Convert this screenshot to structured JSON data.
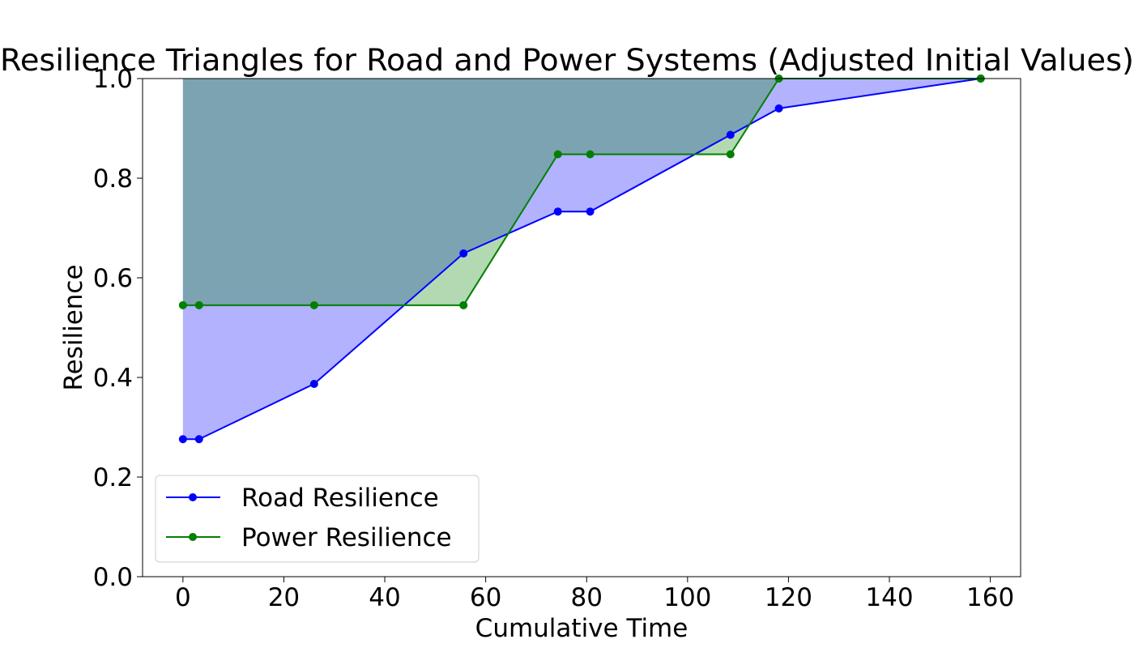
{
  "chart_data": {
    "type": "line",
    "title": "Resilience Triangles for Road and Power Systems (Adjusted Initial Values)",
    "xlabel": "Cumulative Time",
    "ylabel": "Resilience",
    "xlim": [
      -8,
      166
    ],
    "ylim": [
      0,
      1
    ],
    "xticks": [
      0,
      20,
      40,
      60,
      80,
      100,
      120,
      140,
      160
    ],
    "yticks": [
      0.0,
      0.2,
      0.4,
      0.6,
      0.8,
      1.0
    ],
    "xtick_labels": [
      "0",
      "20",
      "40",
      "60",
      "80",
      "100",
      "120",
      "140",
      "160"
    ],
    "ytick_labels": [
      "0.0",
      "0.2",
      "0.4",
      "0.6",
      "0.8",
      "1.0"
    ],
    "grid": false,
    "legend_position": "lower-left",
    "shaded_to": 1.0,
    "series": [
      {
        "name": "Road Resilience",
        "color": "#0000ff",
        "fill_color": "#0000ff",
        "fill_opacity": 0.3,
        "x": [
          0,
          3.2,
          26,
          55.6,
          74.3,
          80.7,
          108.5,
          118.1,
          158.1
        ],
        "y": [
          0.276,
          0.276,
          0.387,
          0.649,
          0.733,
          0.733,
          0.887,
          0.94,
          1.0
        ]
      },
      {
        "name": "Power Resilience",
        "color": "#008000",
        "fill_color": "#008000",
        "fill_opacity": 0.3,
        "x": [
          0,
          3.2,
          26,
          55.6,
          74.3,
          80.7,
          108.5,
          118.1,
          158.1
        ],
        "y": [
          0.545,
          0.545,
          0.545,
          0.545,
          0.848,
          0.848,
          0.848,
          1.0,
          1.0
        ]
      }
    ]
  }
}
